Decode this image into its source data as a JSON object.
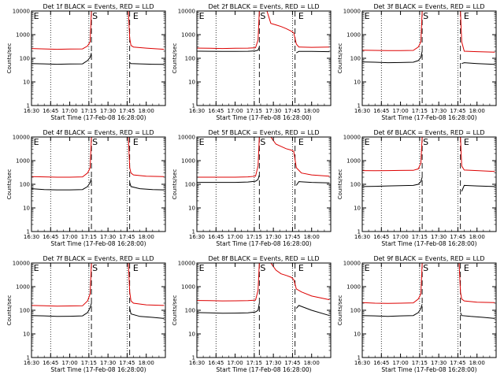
{
  "shared": {
    "ylabel": "Counts/sec",
    "xlabel": "Start Time (17-Feb-08 16:28:00)",
    "x_ticks": [
      "16:30",
      "16:45",
      "17:00",
      "17:15",
      "17:30",
      "17:45",
      "18:00"
    ],
    "y_ticks": [
      "1",
      "10",
      "100",
      "1000",
      "10000"
    ],
    "colors": {
      "events": "#000000",
      "lld": "#dd0000"
    }
  },
  "chart_data": [
    {
      "type": "line",
      "panel": "1f",
      "title": "Det 1f BLACK = Events, RED = LLD",
      "x_unit": "minutes after 16:30",
      "xlim": [
        0,
        105
      ],
      "ylim": [
        1,
        10000
      ],
      "y_scale": "log",
      "dotted_vlines": [
        15,
        45,
        75
      ],
      "dashed_vlines": [
        47,
        77
      ],
      "markers": [
        {
          "label": "E",
          "x": 1
        },
        {
          "label": "S",
          "x": 47
        },
        {
          "label": "E",
          "x": 79
        }
      ],
      "series": [
        {
          "name": "Events",
          "color": "#000000",
          "x": [
            0,
            10,
            20,
            30,
            40,
            44,
            46,
            47,
            47.5,
            76,
            76.5,
            78,
            85,
            95,
            104
          ],
          "y": [
            60,
            58,
            56,
            57,
            58,
            80,
            110,
            170,
            null,
            null,
            70,
            60,
            58,
            56,
            55
          ]
        },
        {
          "name": "LLD",
          "color": "#dd0000",
          "x": [
            0,
            10,
            20,
            30,
            40,
            44,
            46,
            47,
            76,
            77,
            78,
            80,
            90,
            104
          ],
          "y": [
            260,
            250,
            240,
            245,
            250,
            330,
            500,
            10000,
            10000,
            700,
            350,
            300,
            270,
            240
          ]
        }
      ]
    },
    {
      "type": "line",
      "panel": "2f",
      "title": "Det 2f BLACK = Events, RED = LLD",
      "x_unit": "minutes after 16:30",
      "xlim": [
        0,
        105
      ],
      "ylim": [
        1,
        10000
      ],
      "y_scale": "log",
      "dotted_vlines": [
        15,
        45,
        75
      ],
      "dashed_vlines": [
        49,
        77
      ],
      "markers": [
        {
          "label": "E",
          "x": 1
        },
        {
          "label": "S",
          "x": 49
        },
        {
          "label": "E",
          "x": 79
        }
      ],
      "series": [
        {
          "name": "Events",
          "color": "#000000",
          "x": [
            0,
            10,
            20,
            30,
            40,
            46,
            48,
            49,
            49.5,
            77.5,
            78,
            80,
            90,
            104
          ],
          "y": [
            200,
            198,
            195,
            196,
            198,
            205,
            220,
            300,
            null,
            null,
            170,
            195,
            195,
            190
          ]
        },
        {
          "name": "LLD",
          "color": "#dd0000",
          "x": [
            0,
            10,
            20,
            30,
            40,
            46,
            48,
            49,
            55,
            58,
            62,
            66,
            70,
            74,
            76,
            78,
            80,
            90,
            104
          ],
          "y": [
            270,
            265,
            260,
            265,
            270,
            280,
            600,
            10000,
            10000,
            3000,
            2600,
            2200,
            1800,
            1400,
            1200,
            400,
            300,
            290,
            300
          ]
        }
      ]
    },
    {
      "type": "line",
      "panel": "3f",
      "title": "Det 3f BLACK = Events, RED = LLD",
      "x_unit": "minutes after 16:30",
      "xlim": [
        0,
        105
      ],
      "ylim": [
        1,
        10000
      ],
      "y_scale": "log",
      "dotted_vlines": [
        15,
        45,
        75
      ],
      "dashed_vlines": [
        47,
        77
      ],
      "markers": [
        {
          "label": "E",
          "x": 1
        },
        {
          "label": "S",
          "x": 47
        },
        {
          "label": "E",
          "x": 79
        }
      ],
      "series": [
        {
          "name": "Events",
          "color": "#000000",
          "x": [
            0,
            10,
            20,
            30,
            40,
            44,
            46,
            47,
            47.5,
            77.5,
            78,
            80,
            90,
            104
          ],
          "y": [
            70,
            68,
            65,
            66,
            68,
            80,
            110,
            200,
            null,
            null,
            60,
            65,
            60,
            55
          ]
        },
        {
          "name": "LLD",
          "color": "#dd0000",
          "x": [
            0,
            10,
            20,
            30,
            40,
            44,
            46,
            47,
            77,
            78,
            80,
            90,
            104
          ],
          "y": [
            220,
            215,
            210,
            210,
            215,
            300,
            500,
            10000,
            10000,
            500,
            200,
            190,
            180
          ]
        }
      ]
    },
    {
      "type": "line",
      "panel": "4f",
      "title": "Det 4f BLACK = Events, RED = LLD",
      "x_unit": "minutes after 16:30",
      "xlim": [
        0,
        105
      ],
      "ylim": [
        1,
        10000
      ],
      "y_scale": "log",
      "dotted_vlines": [
        15,
        45,
        75
      ],
      "dashed_vlines": [
        47,
        77
      ],
      "markers": [
        {
          "label": "E",
          "x": 1
        },
        {
          "label": "S",
          "x": 47
        },
        {
          "label": "E",
          "x": 79
        }
      ],
      "series": [
        {
          "name": "Events",
          "color": "#000000",
          "x": [
            0,
            10,
            20,
            30,
            40,
            44,
            46,
            47,
            47.5,
            76.5,
            77,
            78,
            85,
            95,
            104
          ],
          "y": [
            65,
            60,
            58,
            58,
            60,
            80,
            120,
            180,
            null,
            null,
            120,
            80,
            65,
            60,
            58
          ]
        },
        {
          "name": "LLD",
          "color": "#dd0000",
          "x": [
            0,
            10,
            20,
            30,
            40,
            44,
            46,
            47,
            76,
            77,
            78,
            80,
            90,
            104
          ],
          "y": [
            210,
            205,
            200,
            200,
            205,
            300,
            500,
            10000,
            10000,
            500,
            300,
            250,
            220,
            210
          ]
        }
      ]
    },
    {
      "type": "line",
      "panel": "5f",
      "title": "Det 5f BLACK = Events, RED = LLD",
      "x_unit": "minutes after 16:30",
      "xlim": [
        0,
        105
      ],
      "ylim": [
        1,
        10000
      ],
      "y_scale": "log",
      "dotted_vlines": [
        15,
        45,
        75
      ],
      "dashed_vlines": [
        49,
        77
      ],
      "markers": [
        {
          "label": "E",
          "x": 1
        },
        {
          "label": "S",
          "x": 49
        },
        {
          "label": "E",
          "x": 79
        }
      ],
      "series": [
        {
          "name": "Events",
          "color": "#000000",
          "x": [
            0,
            10,
            20,
            30,
            40,
            46,
            48,
            49,
            49.5,
            77.5,
            78,
            80,
            90,
            104
          ],
          "y": [
            120,
            120,
            120,
            120,
            125,
            135,
            160,
            250,
            null,
            null,
            90,
            130,
            120,
            115
          ]
        },
        {
          "name": "LLD",
          "color": "#dd0000",
          "x": [
            0,
            10,
            20,
            30,
            40,
            46,
            48,
            49,
            58,
            62,
            66,
            70,
            74,
            76,
            78,
            82,
            90,
            104
          ],
          "y": [
            200,
            200,
            200,
            200,
            205,
            220,
            600,
            10000,
            10000,
            5000,
            4000,
            3200,
            2800,
            2500,
            500,
            300,
            250,
            220
          ]
        }
      ]
    },
    {
      "type": "line",
      "panel": "6f",
      "title": "Det 6f BLACK = Events, RED = LLD",
      "x_unit": "minutes after 16:30",
      "xlim": [
        0,
        105
      ],
      "ylim": [
        1,
        10000
      ],
      "y_scale": "log",
      "dotted_vlines": [
        15,
        45,
        75
      ],
      "dashed_vlines": [
        47,
        77
      ],
      "markers": [
        {
          "label": "E",
          "x": 1
        },
        {
          "label": "S",
          "x": 47
        },
        {
          "label": "E",
          "x": 79
        }
      ],
      "series": [
        {
          "name": "Events",
          "color": "#000000",
          "x": [
            0,
            10,
            20,
            30,
            40,
            44,
            46,
            47,
            47.5,
            77.5,
            78,
            80,
            90,
            104
          ],
          "y": [
            80,
            82,
            85,
            88,
            90,
            100,
            130,
            200,
            null,
            null,
            50,
            90,
            85,
            80
          ]
        },
        {
          "name": "LLD",
          "color": "#dd0000",
          "x": [
            0,
            10,
            20,
            30,
            40,
            44,
            46,
            47,
            77,
            78,
            80,
            90,
            104
          ],
          "y": [
            380,
            375,
            380,
            385,
            390,
            450,
            800,
            10000,
            10000,
            600,
            400,
            380,
            350
          ]
        }
      ]
    },
    {
      "type": "line",
      "panel": "7f",
      "title": "Det 7f BLACK = Events, RED = LLD",
      "x_unit": "minutes after 16:30",
      "xlim": [
        0,
        105
      ],
      "ylim": [
        1,
        10000
      ],
      "y_scale": "log",
      "dotted_vlines": [
        15,
        45,
        75
      ],
      "dashed_vlines": [
        47,
        77
      ],
      "markers": [
        {
          "label": "E",
          "x": 1
        },
        {
          "label": "S",
          "x": 47
        },
        {
          "label": "E",
          "x": 79
        }
      ],
      "series": [
        {
          "name": "Events",
          "color": "#000000",
          "x": [
            0,
            10,
            20,
            30,
            40,
            44,
            46,
            47,
            47.5,
            76.5,
            77,
            78,
            85,
            95,
            104
          ],
          "y": [
            60,
            58,
            55,
            56,
            58,
            80,
            130,
            200,
            null,
            null,
            120,
            70,
            55,
            50,
            45
          ]
        },
        {
          "name": "LLD",
          "color": "#dd0000",
          "x": [
            0,
            10,
            20,
            30,
            40,
            44,
            46,
            47,
            76,
            77,
            78,
            80,
            90,
            104
          ],
          "y": [
            160,
            155,
            150,
            152,
            155,
            250,
            500,
            10000,
            10000,
            600,
            250,
            200,
            170,
            160
          ]
        }
      ]
    },
    {
      "type": "line",
      "panel": "8f",
      "title": "Det 8f BLACK = Events, RED = LLD",
      "x_unit": "minutes after 16:30",
      "xlim": [
        0,
        105
      ],
      "ylim": [
        1,
        10000
      ],
      "y_scale": "log",
      "dotted_vlines": [
        15,
        45,
        75
      ],
      "dashed_vlines": [
        49,
        77
      ],
      "markers": [
        {
          "label": "E",
          "x": 1
        },
        {
          "label": "S",
          "x": 49
        },
        {
          "label": "E",
          "x": 79
        }
      ],
      "series": [
        {
          "name": "Events",
          "color": "#000000",
          "x": [
            0,
            10,
            20,
            30,
            40,
            46,
            48,
            49,
            49.5,
            77.5,
            78,
            80,
            90,
            104
          ],
          "y": [
            80,
            78,
            75,
            76,
            78,
            85,
            100,
            200,
            null,
            null,
            120,
            160,
            100,
            60
          ]
        },
        {
          "name": "LLD",
          "color": "#dd0000",
          "x": [
            0,
            10,
            20,
            30,
            40,
            46,
            48,
            49,
            58,
            62,
            66,
            70,
            74,
            76,
            78,
            82,
            90,
            104
          ],
          "y": [
            260,
            255,
            250,
            252,
            255,
            270,
            700,
            10000,
            10000,
            5000,
            3500,
            3000,
            2500,
            2000,
            800,
            600,
            400,
            280
          ]
        }
      ]
    },
    {
      "type": "line",
      "panel": "9f",
      "title": "Det 9f BLACK = Events, RED = LLD",
      "x_unit": "minutes after 16:30",
      "xlim": [
        0,
        105
      ],
      "ylim": [
        1,
        10000
      ],
      "y_scale": "log",
      "dotted_vlines": [
        15,
        45,
        75
      ],
      "dashed_vlines": [
        47,
        77
      ],
      "markers": [
        {
          "label": "E",
          "x": 1
        },
        {
          "label": "S",
          "x": 47
        },
        {
          "label": "E",
          "x": 79
        }
      ],
      "series": [
        {
          "name": "Events",
          "color": "#000000",
          "x": [
            0,
            10,
            20,
            30,
            40,
            44,
            46,
            47,
            47.5,
            76.5,
            77,
            78,
            85,
            95,
            104
          ],
          "y": [
            60,
            58,
            55,
            58,
            60,
            80,
            120,
            180,
            null,
            null,
            80,
            60,
            55,
            50,
            45
          ]
        },
        {
          "name": "LLD",
          "color": "#dd0000",
          "x": [
            0,
            10,
            20,
            30,
            40,
            44,
            46,
            47,
            76,
            77,
            78,
            80,
            90,
            104
          ],
          "y": [
            210,
            200,
            195,
            200,
            205,
            300,
            500,
            10000,
            10000,
            600,
            300,
            250,
            220,
            210
          ]
        }
      ]
    }
  ]
}
